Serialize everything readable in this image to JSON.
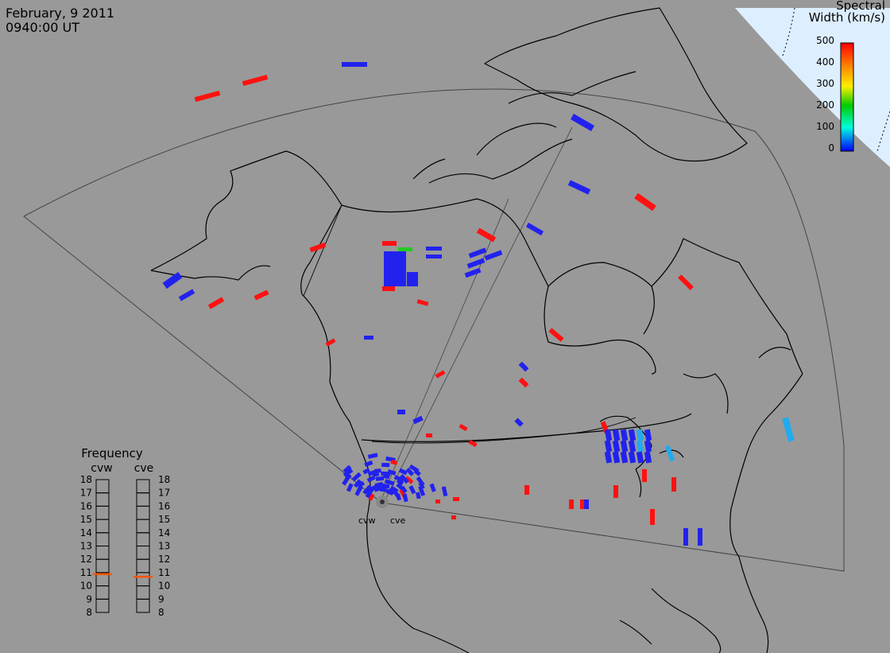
{
  "header": {
    "date": "February, 9 2011",
    "time": "0940:00 UT"
  },
  "colorbar": {
    "title_line1": "Spectral",
    "title_line2": "Width (km/s)",
    "ticks": [
      "500",
      "400",
      "300",
      "200",
      "100",
      "0"
    ],
    "gradient": [
      "#ff0000",
      "#ff8800",
      "#ffee00",
      "#00cc00",
      "#00ffdd",
      "#0000ff"
    ]
  },
  "frequency_panel": {
    "title": "Frequency",
    "radars": [
      "cvw",
      "cve"
    ],
    "levels": [
      "18",
      "17",
      "16",
      "15",
      "14",
      "13",
      "12",
      "11",
      "10",
      "9",
      "8"
    ],
    "cvw_value": 10.9,
    "cve_value": 10.7,
    "marker_color": "#ff5500"
  },
  "map": {
    "radar_sites": [
      "cvw",
      "cve"
    ],
    "background": "#999999",
    "polar_cap_color": "#ddeeff",
    "echo_colors": {
      "low": "#2222ee",
      "mid": "#22aaee",
      "green": "#22cc22",
      "high": "#ff1111"
    }
  }
}
